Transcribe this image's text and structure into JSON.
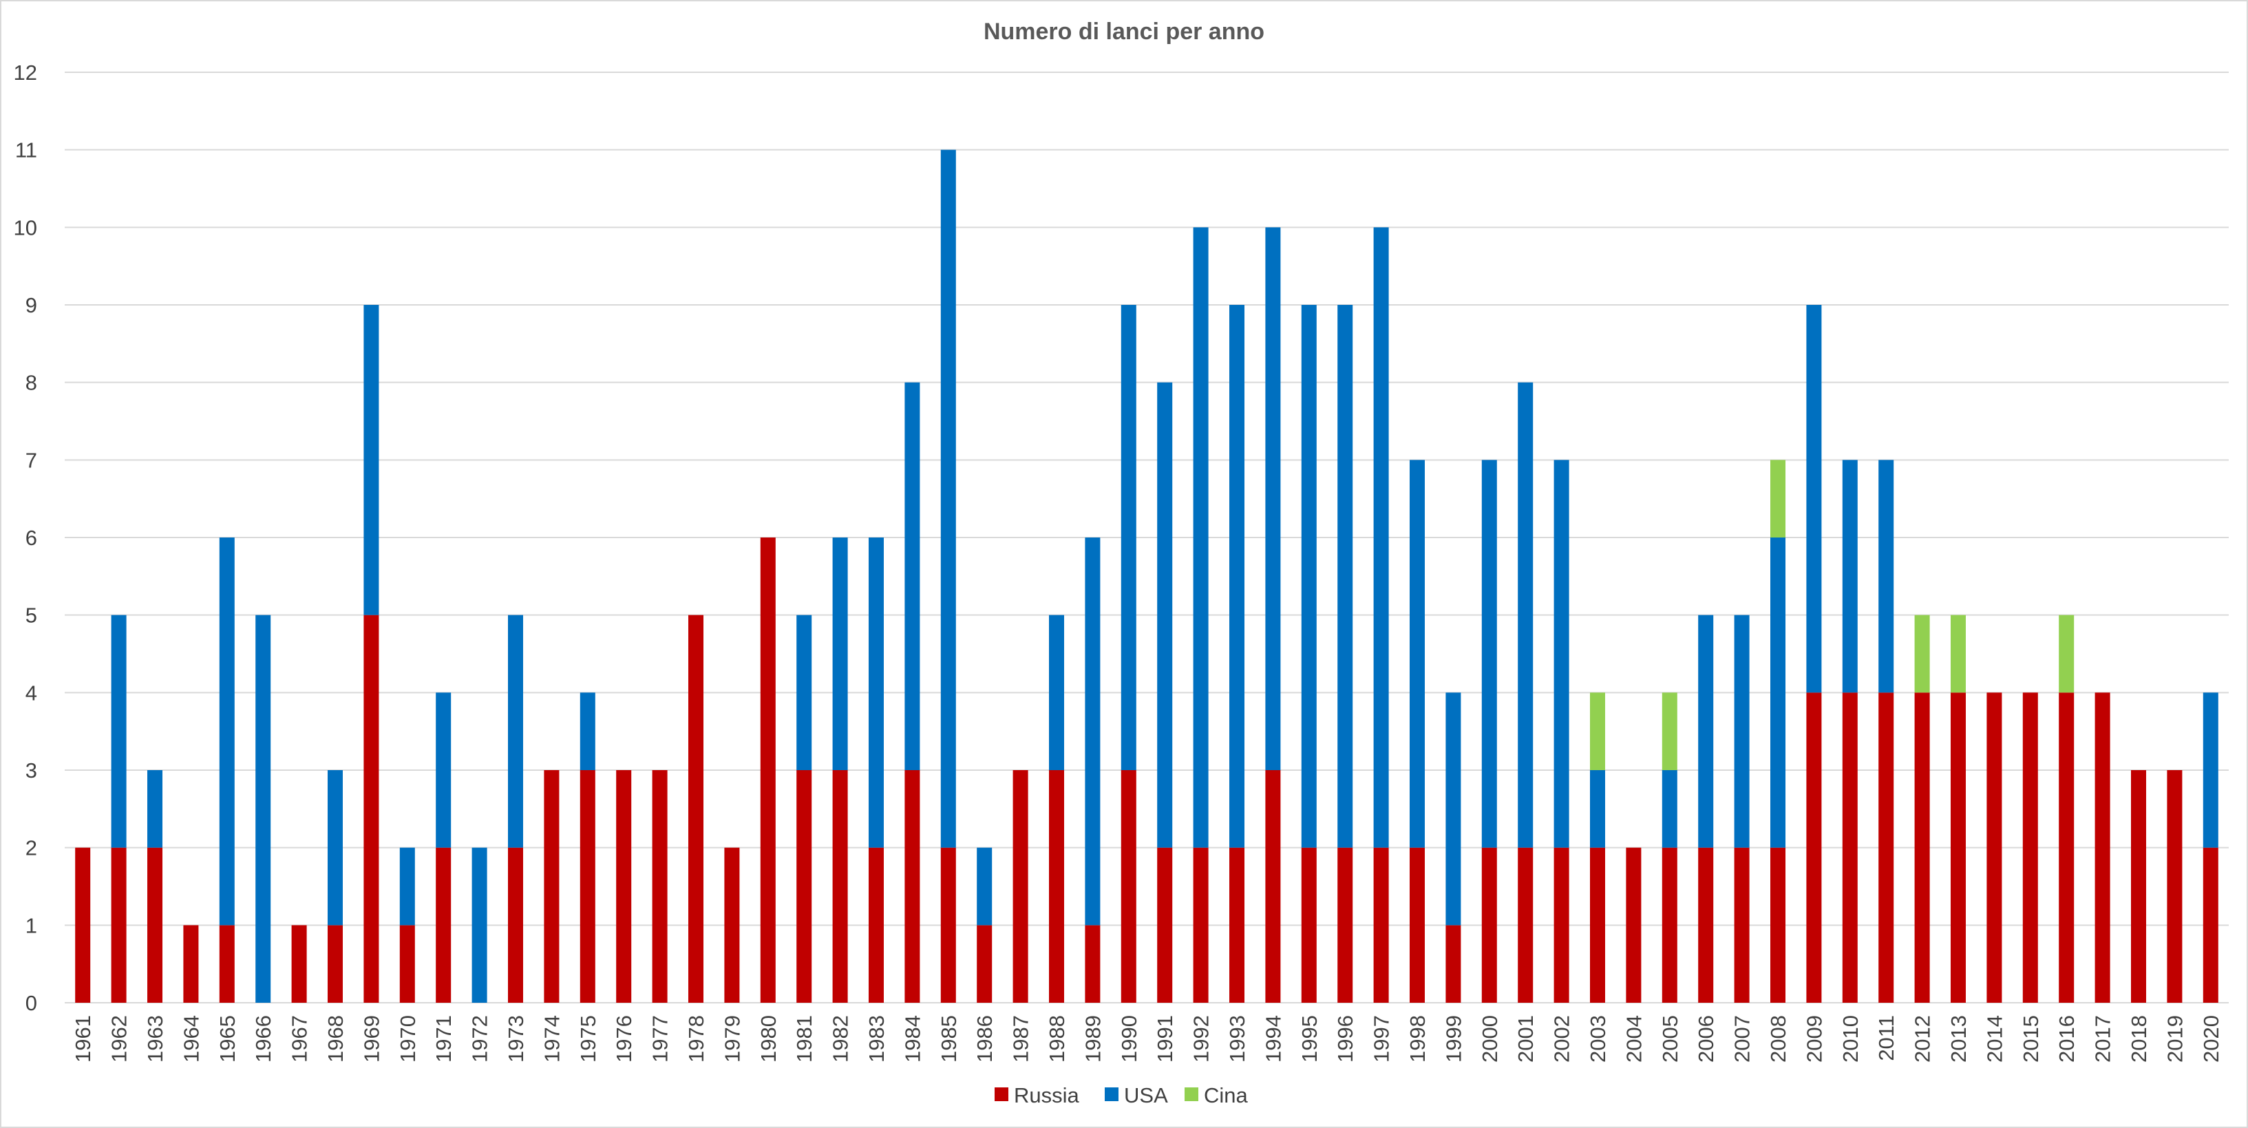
{
  "chart_data": {
    "type": "bar",
    "stacked": true,
    "title": "Numero di lanci per anno",
    "xlabel": "",
    "ylabel": "",
    "ylim": [
      0,
      12
    ],
    "yticks": [
      "0",
      "1",
      "2",
      "3",
      "4",
      "5",
      "6",
      "7",
      "8",
      "9",
      "10",
      "11",
      "12"
    ],
    "grid": true,
    "legend": "bottom",
    "categories": [
      "1961",
      "1962",
      "1963",
      "1964",
      "1965",
      "1966",
      "1967",
      "1968",
      "1969",
      "1970",
      "1971",
      "1972",
      "1973",
      "1974",
      "1975",
      "1976",
      "1977",
      "1978",
      "1979",
      "1980",
      "1981",
      "1982",
      "1983",
      "1984",
      "1985",
      "1986",
      "1987",
      "1988",
      "1989",
      "1990",
      "1991",
      "1992",
      "1993",
      "1994",
      "1995",
      "1996",
      "1997",
      "1998",
      "1999",
      "2000",
      "2001",
      "2002",
      "2003",
      "2004",
      "2005",
      "2006",
      "2007",
      "2008",
      "2009",
      "2010",
      "2011",
      "2012",
      "2013",
      "2014",
      "2015",
      "2016",
      "2017",
      "2018",
      "2019",
      "2020"
    ],
    "series": [
      {
        "name": "Russia",
        "color": "#C00000",
        "values": [
          2,
          2,
          2,
          1,
          1,
          0,
          1,
          1,
          5,
          1,
          2,
          0,
          2,
          3,
          3,
          3,
          3,
          5,
          2,
          6,
          3,
          3,
          2,
          3,
          2,
          1,
          3,
          3,
          1,
          3,
          2,
          2,
          2,
          3,
          2,
          2,
          2,
          2,
          1,
          2,
          2,
          2,
          2,
          2,
          2,
          2,
          2,
          2,
          4,
          4,
          4,
          4,
          4,
          4,
          4,
          4,
          4,
          3,
          3,
          2
        ]
      },
      {
        "name": "USA",
        "color": "#0070C0",
        "values": [
          0,
          3,
          1,
          0,
          5,
          5,
          0,
          2,
          4,
          1,
          2,
          2,
          3,
          0,
          1,
          0,
          0,
          0,
          0,
          0,
          2,
          3,
          4,
          5,
          9,
          1,
          0,
          2,
          5,
          6,
          6,
          8,
          7,
          7,
          7,
          7,
          8,
          5,
          3,
          5,
          6,
          5,
          1,
          0,
          1,
          3,
          3,
          4,
          5,
          3,
          3,
          0,
          0,
          0,
          0,
          0,
          0,
          0,
          0,
          2
        ]
      },
      {
        "name": "Cina",
        "color": "#92D050",
        "values": [
          0,
          0,
          0,
          0,
          0,
          0,
          0,
          0,
          0,
          0,
          0,
          0,
          0,
          0,
          0,
          0,
          0,
          0,
          0,
          0,
          0,
          0,
          0,
          0,
          0,
          0,
          0,
          0,
          0,
          0,
          0,
          0,
          0,
          0,
          0,
          0,
          0,
          0,
          0,
          0,
          0,
          0,
          1,
          0,
          1,
          0,
          0,
          1,
          0,
          0,
          0,
          1,
          1,
          0,
          0,
          1,
          0,
          0,
          0,
          0
        ]
      }
    ]
  }
}
